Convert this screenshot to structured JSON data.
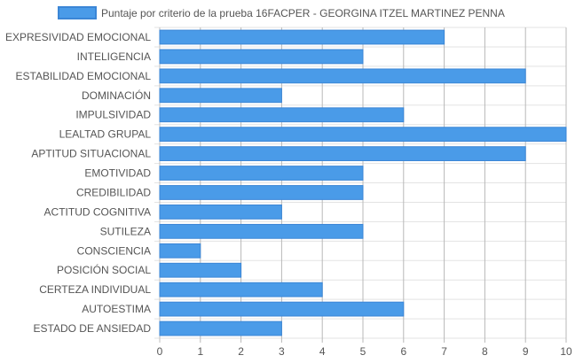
{
  "chart_data": {
    "type": "bar",
    "orientation": "horizontal",
    "categories": [
      "EXPRESIVIDAD EMOCIONAL",
      "INTELIGENCIA",
      "ESTABILIDAD EMOCIONAL",
      "DOMINACIÓN",
      "IMPULSIVIDAD",
      "LEALTAD GRUPAL",
      "APTITUD SITUACIONAL",
      "EMOTIVIDAD",
      "CREDIBILIDAD",
      "ACTITUD COGNITIVA",
      "SUTILEZA",
      "CONSCIENCIA",
      "POSICIÓN SOCIAL",
      "CERTEZA INDIVIDUAL",
      "AUTOESTIMA",
      "ESTADO DE ANSIEDAD"
    ],
    "series": [
      {
        "name": "Puntaje por criterio de la prueba 16FACPER - GEORGINA ITZEL MARTINEZ PENNA",
        "values": [
          7,
          5,
          9,
          3,
          6,
          10,
          9,
          5,
          5,
          3,
          5,
          1,
          2,
          4,
          6,
          3
        ],
        "color": "#4a9be8",
        "border_color": "#3b86d6"
      }
    ],
    "x_ticks": [
      "0",
      "1",
      "2",
      "3",
      "4",
      "5",
      "6",
      "7",
      "8",
      "9",
      "10"
    ],
    "xlim": [
      0,
      10
    ],
    "grid": true,
    "legend_position": "top"
  }
}
